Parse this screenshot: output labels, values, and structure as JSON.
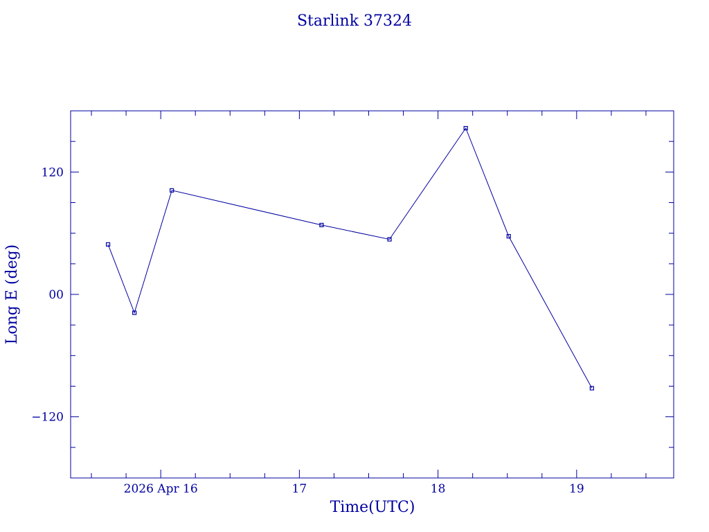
{
  "chart_data": {
    "type": "line",
    "title": "Starlink 37324",
    "xlabel": "Time(UTC)",
    "ylabel": "Long E (deg)",
    "x_unit": "days (April 2026)",
    "xlim": [
      15.35,
      19.7
    ],
    "ylim": [
      -180,
      180
    ],
    "x_ticks": [
      {
        "value": 16,
        "label": "2026 Apr 16"
      },
      {
        "value": 17,
        "label": "17"
      },
      {
        "value": 18,
        "label": "18"
      },
      {
        "value": 19,
        "label": "19"
      }
    ],
    "y_ticks": [
      {
        "value": 120,
        "label": "120"
      },
      {
        "value": 0,
        "label": "00"
      },
      {
        "value": -120,
        "label": "−120"
      }
    ],
    "series": [
      {
        "x": [
          15.62,
          15.81,
          16.08,
          17.16,
          17.65,
          18.2,
          18.51,
          19.11
        ],
        "y": [
          49,
          -18,
          102,
          68,
          54,
          163,
          57,
          -92
        ]
      }
    ],
    "grid": false,
    "legend": "none",
    "color": "#0000a0"
  }
}
